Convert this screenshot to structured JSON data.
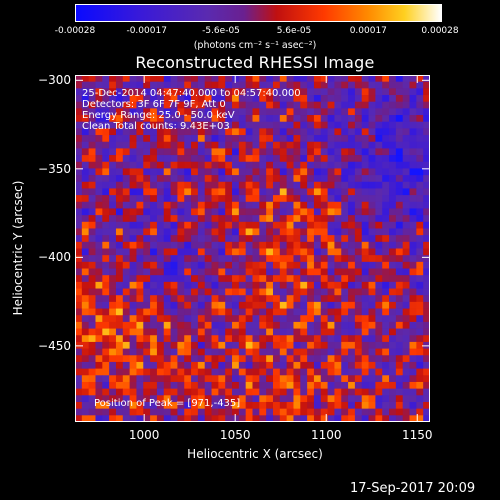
{
  "colorbar": {
    "tick_labels": [
      "-0.00028",
      "-0.00017",
      "-5.6e-05",
      "5.6e-05",
      "0.00017",
      "0.00028"
    ],
    "tick_values": [
      -0.00028,
      -0.00017,
      -5.6e-05,
      5.6e-05,
      0.00017,
      0.00028
    ],
    "unit_label": "(photons cm⁻² s⁻¹ asec⁻²)",
    "range": [
      -0.00028,
      0.00028
    ],
    "colormap": "blue-purple-red-orange-yellow-white"
  },
  "chart_data": {
    "type": "heatmap",
    "title": "Reconstructed RHESSI Image",
    "xlabel": "Heliocentric X (arcsec)",
    "ylabel": "Heliocentric Y (arcsec)",
    "xlim": [
      962,
      1157
    ],
    "ylim": [
      -493,
      -297
    ],
    "x_ticks": [
      1000,
      1050,
      1100,
      1150
    ],
    "y_ticks": [
      -300,
      -350,
      -400,
      -450
    ],
    "peak": [
      971,
      -435
    ],
    "annotations": {
      "time": "25-Dec-2014 04:47:40.000 to 04:57:40.000",
      "detectors": "Detectors: 3F 6F 7F 9F, Att 0",
      "energy": "Energy Range: 25.0 - 50.0 keV",
      "clean": "Clean     Total counts: 9.43E+03",
      "peak_label": "Position of Peak = [971,-435]"
    }
  },
  "footer": {
    "timestamp": "17-Sep-2017 20:09"
  }
}
